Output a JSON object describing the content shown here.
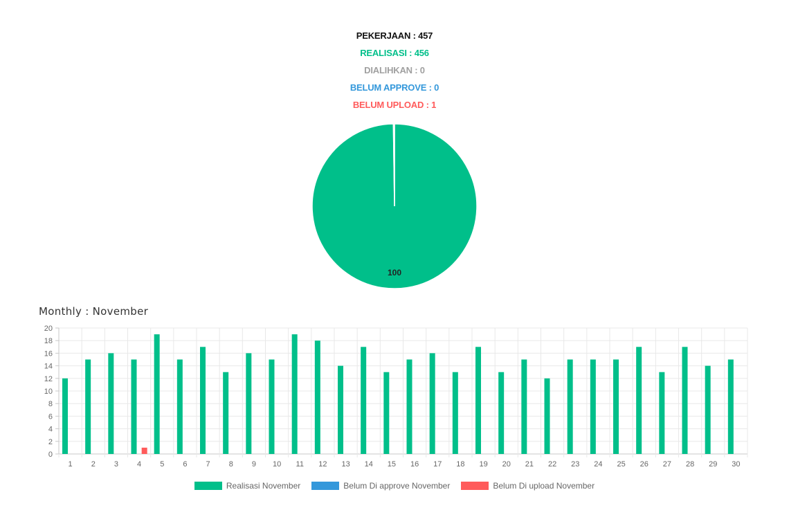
{
  "stats": {
    "pekerjaan": "PEKERJAAN : 457",
    "realisasi": "REALISASI : 456",
    "dialihkan": "DIALIHKAN : 0",
    "belum_approve": "BELUM APPROVE : 0",
    "belum_upload": "BELUM UPLOAD : 1"
  },
  "colors": {
    "realisasi": "#00bf8a",
    "dialihkan": "#a0a0a0",
    "approve": "#3498db",
    "upload": "#ff5b5b",
    "text": "#111111"
  },
  "monthly_title": "Monthly : November",
  "chart_data": [
    {
      "type": "pie",
      "slices": [
        {
          "label": "Realisasi",
          "value": 456,
          "color": "#00bf8a"
        },
        {
          "label": "Belum Upload",
          "value": 1,
          "color": "#ff5b5b"
        }
      ],
      "data_label": "100"
    },
    {
      "type": "bar",
      "title": "Monthly : November",
      "categories": [
        "1",
        "2",
        "3",
        "4",
        "5",
        "6",
        "7",
        "8",
        "9",
        "10",
        "11",
        "12",
        "13",
        "14",
        "15",
        "16",
        "17",
        "18",
        "19",
        "20",
        "21",
        "22",
        "23",
        "24",
        "25",
        "26",
        "27",
        "28",
        "29",
        "30"
      ],
      "series": [
        {
          "name": "Realisasi November",
          "color": "#00bf8a",
          "values": [
            12,
            15,
            16,
            15,
            19,
            15,
            17,
            13,
            16,
            15,
            19,
            18,
            14,
            17,
            13,
            15,
            16,
            13,
            17,
            13,
            15,
            12,
            15,
            15,
            15,
            17,
            13,
            17,
            14,
            15
          ]
        },
        {
          "name": "Belum Di approve November",
          "color": "#3498db",
          "values": [
            0,
            0,
            0,
            0,
            0,
            0,
            0,
            0,
            0,
            0,
            0,
            0,
            0,
            0,
            0,
            0,
            0,
            0,
            0,
            0,
            0,
            0,
            0,
            0,
            0,
            0,
            0,
            0,
            0,
            0
          ]
        },
        {
          "name": "Belum Di upload November",
          "color": "#ff5b5b",
          "values": [
            0,
            0,
            0,
            1,
            0,
            0,
            0,
            0,
            0,
            0,
            0,
            0,
            0,
            0,
            0,
            0,
            0,
            0,
            0,
            0,
            0,
            0,
            0,
            0,
            0,
            0,
            0,
            0,
            0,
            0
          ]
        }
      ],
      "yticks": [
        "0",
        "2",
        "4",
        "6",
        "8",
        "10",
        "12",
        "14",
        "16",
        "18",
        "20"
      ],
      "ylim": [
        0,
        20
      ],
      "grid": true,
      "legend_position": "bottom"
    }
  ]
}
